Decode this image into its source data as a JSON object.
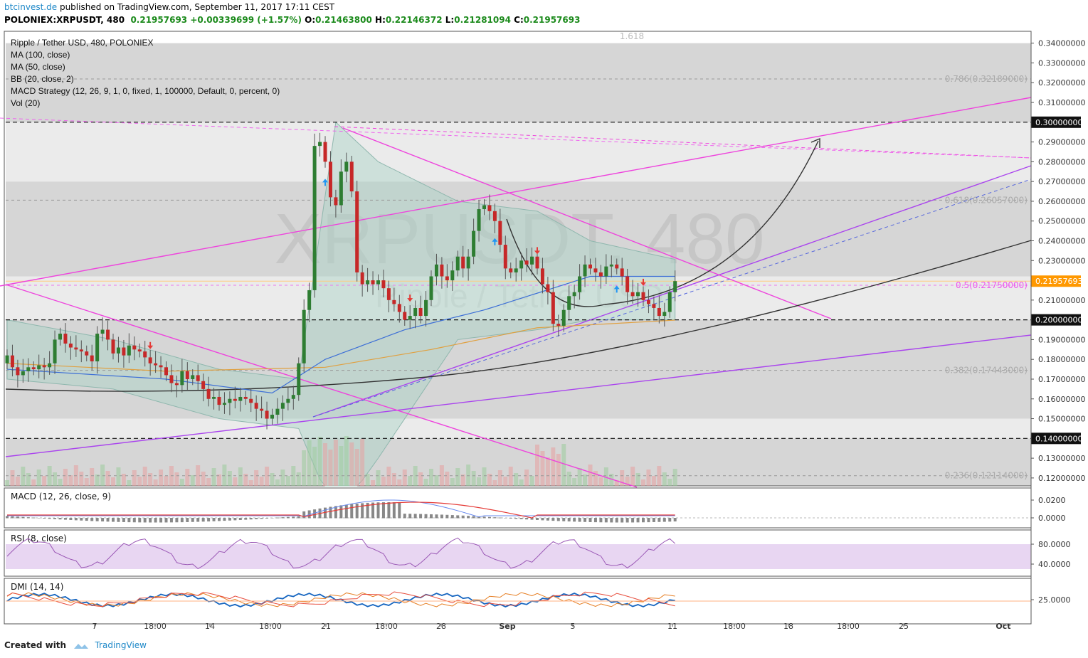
{
  "header": {
    "publisher": "btcinvest.de",
    "published_text": "published on TradingView.com, September 11, 2017 17:11 CEST",
    "symbol": "POLONIEX:XRPUSDT, 480",
    "price": "0.21957693",
    "change": "+0.00339699 (+1.57%)",
    "o_label": "O:",
    "o": "0.21463800",
    "h_label": "H:",
    "h": "0.22146372",
    "l_label": "L:",
    "l": "0.21281094",
    "c_label": "C:",
    "c": "0.21957693"
  },
  "legend": [
    "Ripple / Tether USD, 480, POLONIEX",
    "MA (100, close)",
    "MA (50, close)",
    "BB (20, close, 2)",
    "MACD Strategy (12, 26, 9, 1, 0, fixed, 1, 100000, Default, 0, percent, 0)",
    "Vol (20)"
  ],
  "watermark": {
    "symbol": "XRPUSDT, 480",
    "name": "Ripple / Tether USD"
  },
  "footer": {
    "created_with": "Created with",
    "brand": "TradingView"
  },
  "colors": {
    "up": "#2e7d32",
    "down": "#c62828",
    "accent": "#ff9800",
    "magenta": "#ee44dd",
    "purple": "#aa44ee",
    "blue_ma": "#3d6fd6",
    "orange_ma": "#e0a040"
  },
  "chart_data": [
    {
      "type": "candlestick",
      "title": "Ripple / Tether USD, 480, POLONIEX",
      "ylim": [
        0.116,
        0.346
      ],
      "y_ticks": [
        0.34,
        0.33,
        0.32,
        0.31,
        0.29,
        0.28,
        0.27,
        0.26,
        0.25,
        0.24,
        0.23,
        0.21,
        0.19,
        0.18,
        0.17,
        0.16,
        0.15,
        0.13,
        0.12
      ],
      "y_tick_labels": [
        "0.34000000",
        "0.33000000",
        "0.32000000",
        "0.31000000",
        "0.29000000",
        "0.28000000",
        "0.27000000",
        "0.26000000",
        "0.25000000",
        "0.24000000",
        "0.23000000",
        "0.21000000",
        "0.19000000",
        "0.18000000",
        "0.17000000",
        "0.16000000",
        "0.15000000",
        "0.13000000",
        "0.12000000"
      ],
      "x_ticks": [
        "7",
        "18:00",
        "14",
        "18:00",
        "21",
        "18:00",
        "28",
        "Sep",
        "5",
        "11",
        "18:00",
        "18",
        "18:00",
        "25",
        "Oct"
      ],
      "highlight_levels": [
        {
          "value": 0.3,
          "label": "0.30000000",
          "style": "dark"
        },
        {
          "value": 0.2195769,
          "label": "0.21957693",
          "style": "orange"
        },
        {
          "value": 0.2,
          "label": "0.20000000",
          "style": "dark"
        },
        {
          "value": 0.14,
          "label": "0.14000000",
          "style": "dark"
        }
      ],
      "fib_levels": [
        {
          "value": 0.32189,
          "label": "0.786(0.32189000)"
        },
        {
          "value": 0.26057,
          "label": "0.618(0.26057000)"
        },
        {
          "value": 0.2175,
          "label": "0.5(0.21750000)"
        },
        {
          "value": 0.17443,
          "label": "0.382(0.17443000)"
        },
        {
          "value": 0.12114,
          "label": "0.236(0.12114000)"
        }
      ],
      "fib_top_label": "1.618",
      "closes": [
        0.182,
        0.176,
        0.172,
        0.174,
        0.176,
        0.175,
        0.177,
        0.176,
        0.178,
        0.19,
        0.193,
        0.188,
        0.186,
        0.185,
        0.184,
        0.182,
        0.179,
        0.193,
        0.195,
        0.19,
        0.183,
        0.186,
        0.182,
        0.187,
        0.185,
        0.184,
        0.181,
        0.178,
        0.177,
        0.176,
        0.172,
        0.168,
        0.167,
        0.174,
        0.17,
        0.172,
        0.169,
        0.165,
        0.16,
        0.161,
        0.157,
        0.158,
        0.16,
        0.159,
        0.161,
        0.16,
        0.158,
        0.155,
        0.154,
        0.15,
        0.152,
        0.155,
        0.158,
        0.16,
        0.162,
        0.178,
        0.205,
        0.215,
        0.288,
        0.29,
        0.28,
        0.262,
        0.258,
        0.275,
        0.28,
        0.265,
        0.224,
        0.218,
        0.22,
        0.218,
        0.22,
        0.216,
        0.21,
        0.208,
        0.204,
        0.2,
        0.202,
        0.206,
        0.202,
        0.21,
        0.222,
        0.228,
        0.222,
        0.22,
        0.225,
        0.232,
        0.226,
        0.232,
        0.245,
        0.256,
        0.258,
        0.255,
        0.25,
        0.238,
        0.226,
        0.224,
        0.226,
        0.23,
        0.228,
        0.232,
        0.226,
        0.218,
        0.214,
        0.198,
        0.197,
        0.205,
        0.212,
        0.214,
        0.222,
        0.228,
        0.226,
        0.224,
        0.222,
        0.227,
        0.228,
        0.226,
        0.222,
        0.214,
        0.212,
        0.214,
        0.21,
        0.208,
        0.206,
        0.202,
        0.204,
        0.214,
        0.2196
      ],
      "ma100": [
        [
          0,
          0.178
        ],
        [
          30,
          0.174
        ],
        [
          60,
          0.176
        ],
        [
          80,
          0.185
        ],
        [
          100,
          0.196
        ],
        [
          127,
          0.2
        ]
      ],
      "ma50": [
        [
          0,
          0.175
        ],
        [
          30,
          0.17
        ],
        [
          50,
          0.163
        ],
        [
          60,
          0.18
        ],
        [
          75,
          0.195
        ],
        [
          90,
          0.205
        ],
        [
          110,
          0.222
        ],
        [
          127,
          0.222
        ]
      ],
      "bb_upper": [
        [
          0,
          0.2
        ],
        [
          20,
          0.19
        ],
        [
          40,
          0.175
        ],
        [
          55,
          0.17
        ],
        [
          62,
          0.3
        ],
        [
          70,
          0.28
        ],
        [
          85,
          0.26
        ],
        [
          100,
          0.255
        ],
        [
          110,
          0.24
        ],
        [
          127,
          0.23
        ]
      ],
      "bb_lower": [
        [
          0,
          0.17
        ],
        [
          20,
          0.165
        ],
        [
          40,
          0.15
        ],
        [
          55,
          0.145
        ],
        [
          62,
          0.1
        ],
        [
          70,
          0.13
        ],
        [
          85,
          0.19
        ],
        [
          100,
          0.195
        ],
        [
          110,
          0.2
        ],
        [
          127,
          0.2
        ]
      ]
    },
    {
      "type": "bar",
      "title": "MACD (12, 26, close, 9)",
      "y_ticks": [
        0.02,
        0.0
      ],
      "y_tick_labels": [
        "0.0200",
        "0.0000"
      ]
    },
    {
      "type": "line",
      "title": "RSI (8, close)",
      "y_ticks": [
        80,
        40
      ],
      "y_tick_labels": [
        "80.0000",
        "40.0000"
      ]
    },
    {
      "type": "line",
      "title": "DMI (14, 14)",
      "y_ticks": [
        25
      ],
      "y_tick_labels": [
        "25.0000"
      ]
    }
  ]
}
